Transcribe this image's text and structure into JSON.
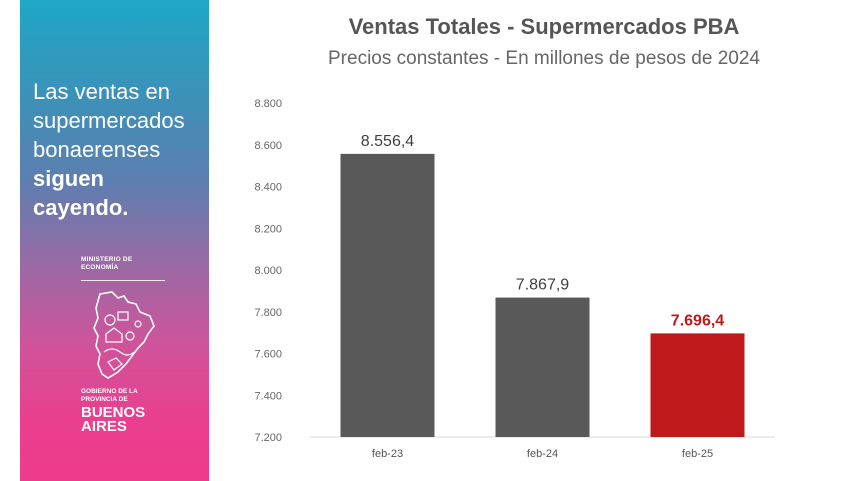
{
  "side_panel": {
    "lines": [
      "Las ventas en",
      "supermercados",
      "bonaerenses"
    ],
    "bold_lines": [
      "siguen",
      "cayendo."
    ],
    "ministry": [
      "MINISTERIO DE",
      "ECONOMÍA"
    ],
    "gov": [
      "GOBIERNO DE LA",
      "PROVINCIA DE"
    ],
    "brand": [
      "BUENOS",
      "AIRES"
    ],
    "icon": "province-map-icon"
  },
  "colors": {
    "bar_default": "#595959",
    "bar_highlight": "#c0191b",
    "highlight_label": "#c0191b"
  },
  "chart_data": {
    "type": "bar",
    "title": "Ventas Totales - Supermercados  PBA",
    "subtitle": "Precios constantes - En millones de pesos de 2024",
    "categories": [
      "feb-23",
      "feb-24",
      "feb-25"
    ],
    "values": [
      8556.4,
      7867.9,
      7696.4
    ],
    "value_labels": [
      "8.556,4",
      "7.867,9",
      "7.696,4"
    ],
    "highlight_index": 2,
    "ylim": [
      7200,
      8800
    ],
    "yticks": [
      7200,
      7400,
      7600,
      7800,
      8000,
      8200,
      8400,
      8600,
      8800
    ],
    "ytick_labels": [
      "7.200",
      "7.400",
      "7.600",
      "7.800",
      "8.000",
      "8.200",
      "8.400",
      "8.600",
      "8.800"
    ],
    "xlabel": "",
    "ylabel": "",
    "grid": false,
    "legend": "none"
  }
}
